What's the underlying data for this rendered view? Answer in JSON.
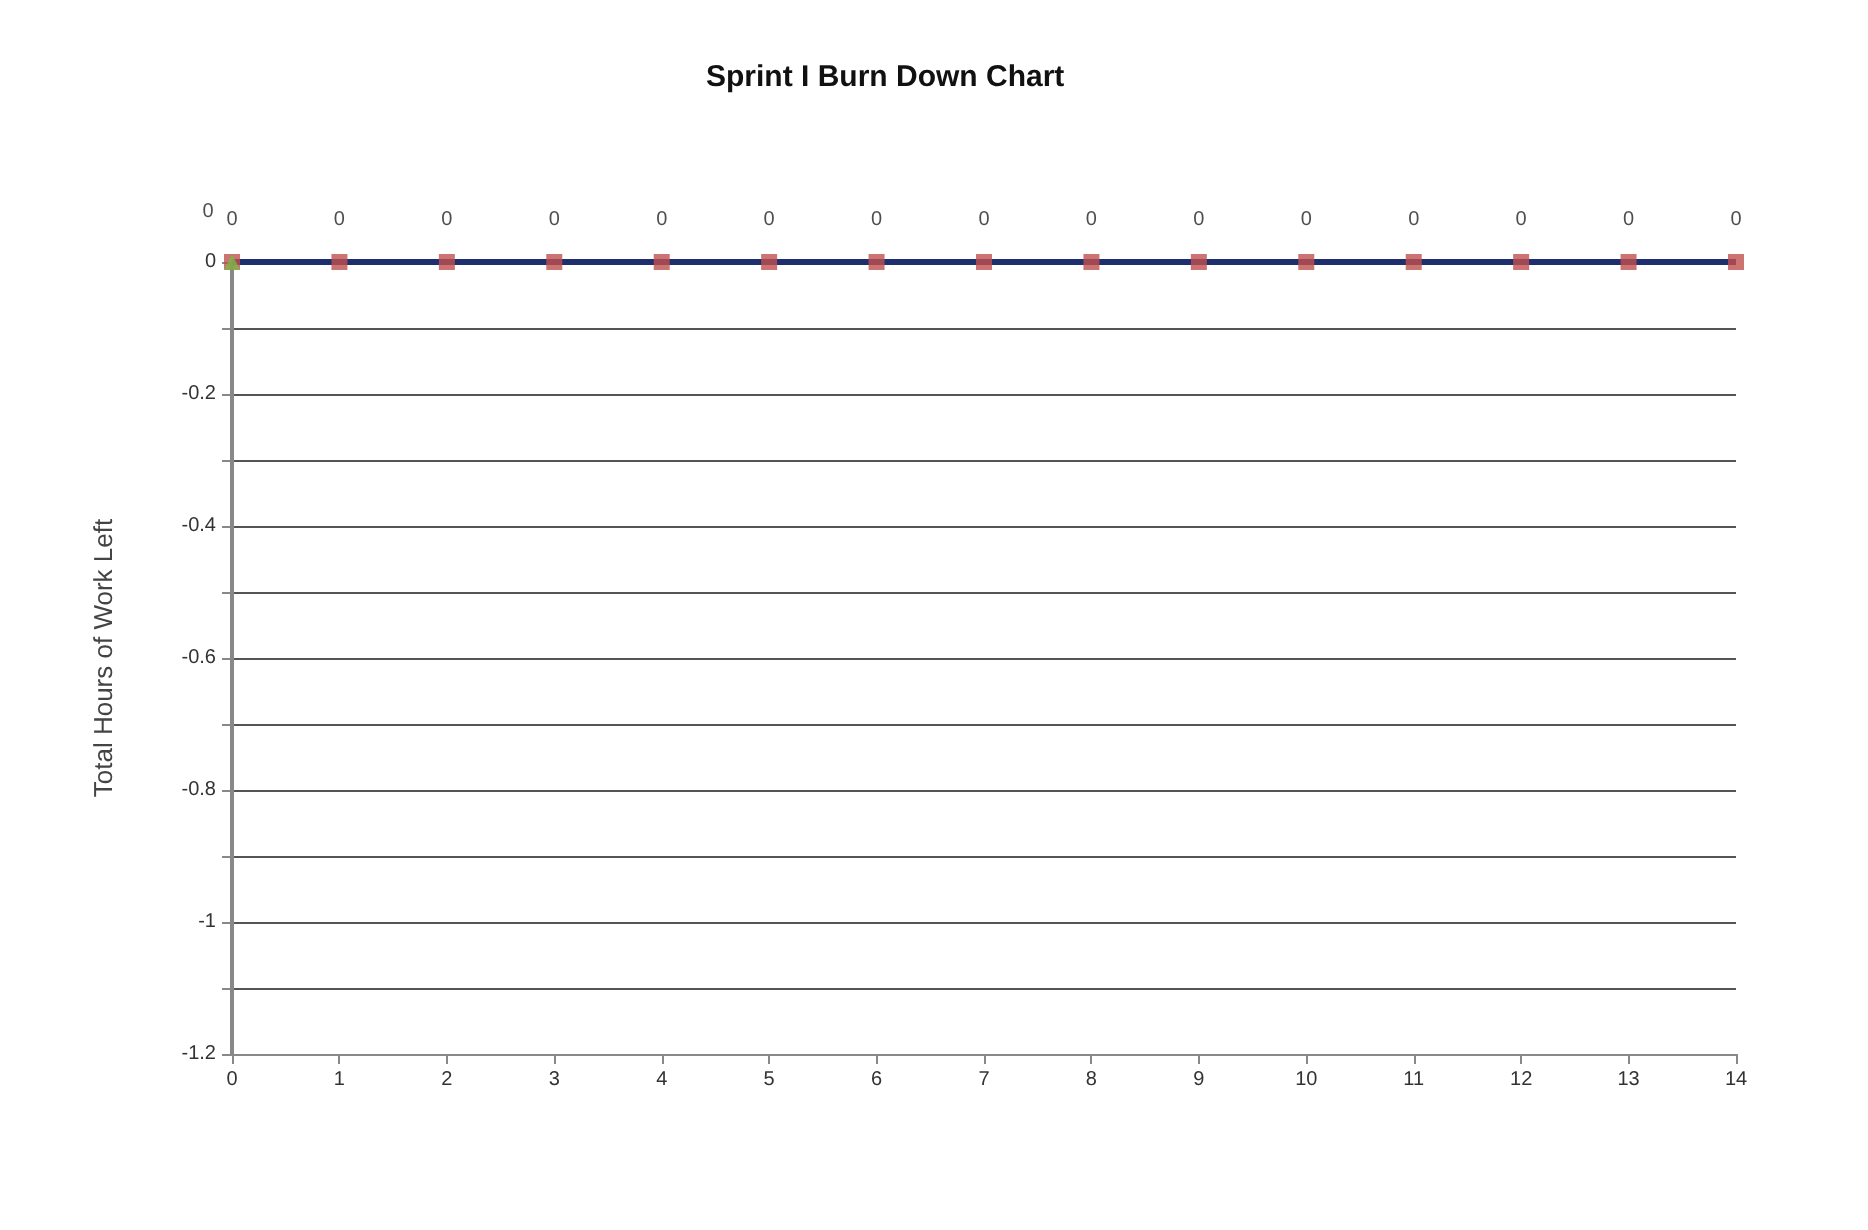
{
  "chart_data": {
    "type": "line",
    "title": "Sprint I Burn Down Chart",
    "ylabel": "Total Hours of Work Left",
    "x": [
      0,
      1,
      2,
      3,
      4,
      5,
      6,
      7,
      8,
      9,
      10,
      11,
      12,
      13,
      14
    ],
    "series": [
      {
        "color": "#1f2f6e",
        "marker": "none",
        "values": [
          0,
          0,
          0,
          0,
          0,
          0,
          0,
          0,
          0,
          0,
          0,
          0,
          0,
          0,
          0
        ]
      },
      {
        "type": "scatter",
        "color": "#c0504d",
        "marker": "square",
        "values": [
          0,
          0,
          0,
          0,
          0,
          0,
          0,
          0,
          0,
          0,
          0,
          0,
          0,
          0,
          0
        ],
        "value_labels": [
          "0",
          "0",
          "0",
          "0",
          "0",
          "0",
          "0",
          "0",
          "0",
          "0",
          "0",
          "0",
          "0",
          "0",
          "0"
        ]
      },
      {
        "type": "scatter",
        "color": "#7ab648",
        "marker": "triangle",
        "x": [
          0
        ],
        "values": [
          0
        ],
        "value_labels": [
          "0"
        ]
      }
    ],
    "xlim": [
      0,
      14
    ],
    "xticks": [
      0,
      1,
      2,
      3,
      4,
      5,
      6,
      7,
      8,
      9,
      10,
      11,
      12,
      13,
      14
    ],
    "ylim": [
      -1.2,
      0
    ],
    "yticks": [
      {
        "value": -1.2,
        "label": "-1.2"
      },
      {
        "value": -1.1,
        "label": null
      },
      {
        "value": -1,
        "label": "-1"
      },
      {
        "value": -0.9,
        "label": null
      },
      {
        "value": -0.8,
        "label": "-0.8"
      },
      {
        "value": -0.7,
        "label": null
      },
      {
        "value": -0.6,
        "label": "-0.6"
      },
      {
        "value": -0.5,
        "label": null
      },
      {
        "value": -0.4,
        "label": "-0.4"
      },
      {
        "value": -0.3,
        "label": null
      },
      {
        "value": -0.2,
        "label": "-0.2"
      },
      {
        "value": -0.1,
        "label": null
      },
      {
        "value": 0,
        "label": "0"
      }
    ],
    "grid": "y"
  }
}
